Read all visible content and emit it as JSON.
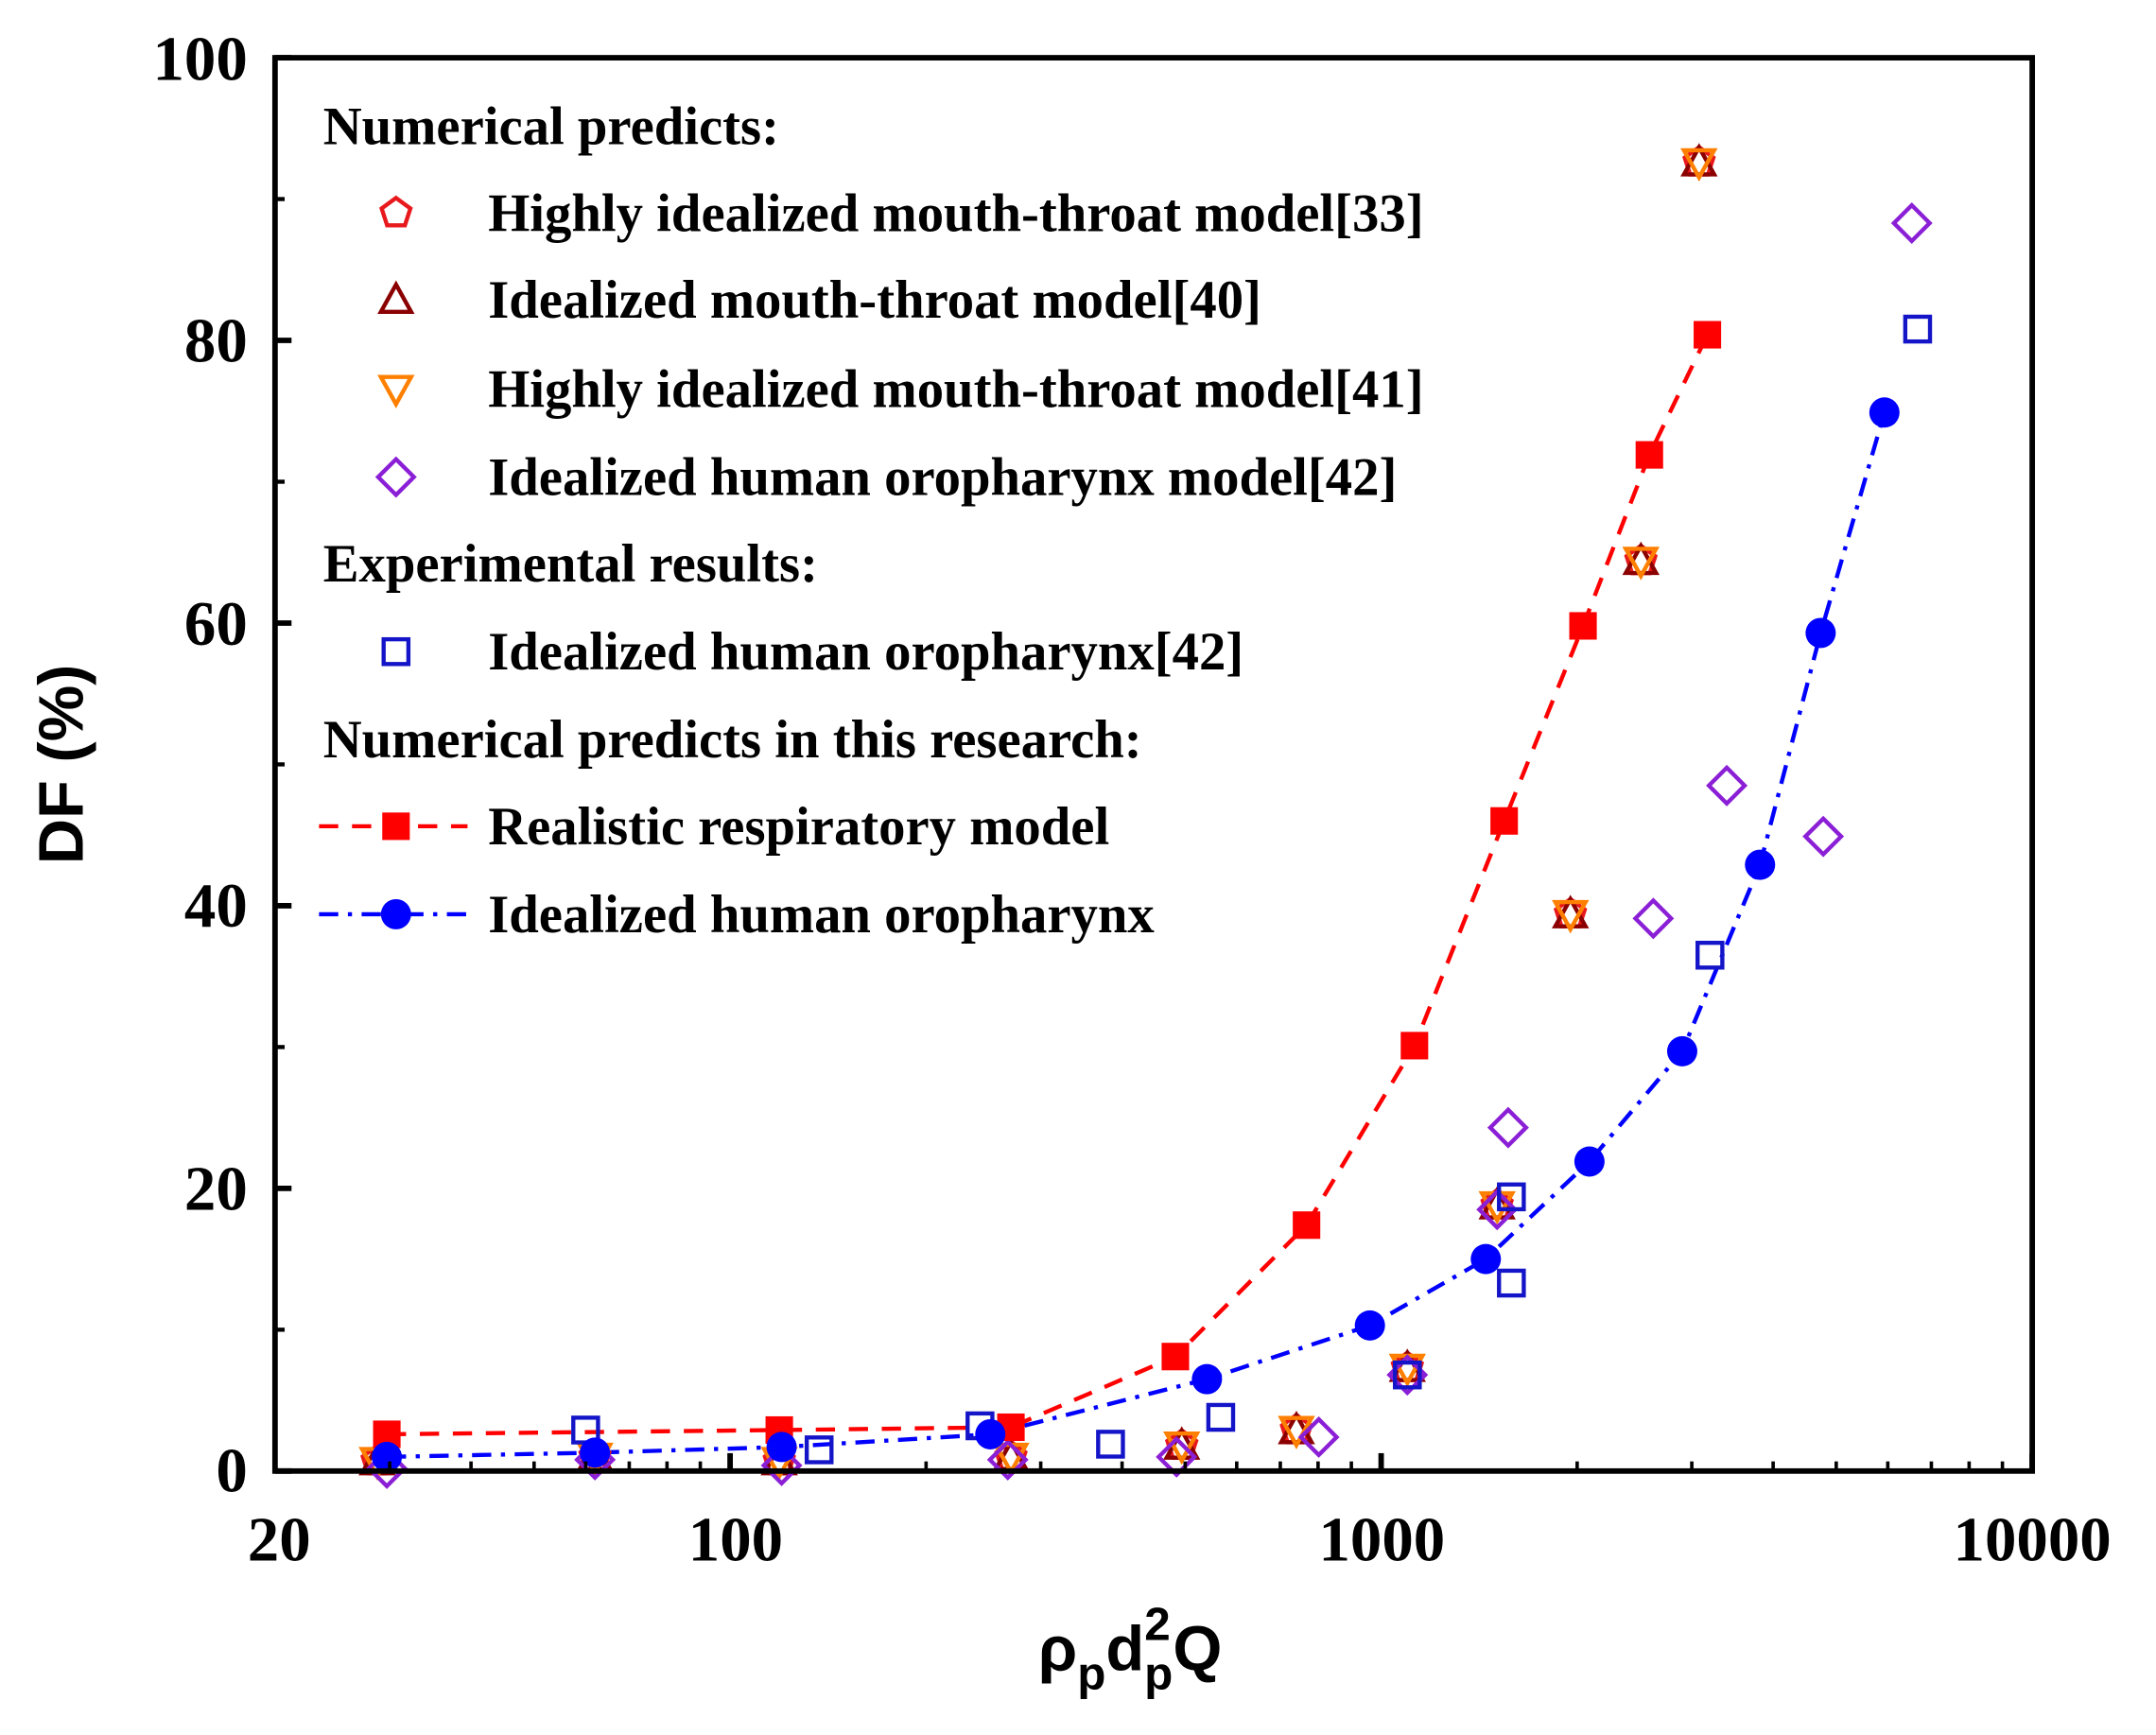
{
  "chart_data": {
    "type": "scatter",
    "xlabel_parts": {
      "rho": "ρ",
      "sub1": "p",
      "d": "d",
      "sup": "2",
      "sub2": "p",
      "q": "Q"
    },
    "ylabel": "DF (%)",
    "xscale": "log",
    "xlim": [
      20,
      10000
    ],
    "ylim": [
      0,
      100
    ],
    "xticks": [
      "20",
      "100",
      "1000",
      "10000"
    ],
    "yticks": [
      "0",
      "20",
      "40",
      "60",
      "80",
      "100"
    ],
    "grid": false,
    "legend_placement": "top-left",
    "legend_headers": {
      "numerical": "Numerical predicts:",
      "experimental": "Experimental results:",
      "this_research": "Numerical predicts in this research:"
    },
    "series": [
      {
        "name": "Highly idealized mouth-throat model[33]",
        "marker": "pentagon-open",
        "color": "#e8191c",
        "x": [
          28.7,
          62,
          119,
          270,
          494,
          741,
          1097,
          1507,
          1953,
          2506,
          3078
        ],
        "y": [
          0.7,
          1.0,
          0.7,
          1.0,
          1.8,
          2.9,
          7.3,
          18.8,
          39.4,
          64.4,
          92.6
        ]
      },
      {
        "name": "Idealized mouth-throat model[40]",
        "marker": "triangle-up-open",
        "color": "#8b0000",
        "x": [
          28.7,
          62,
          119,
          270,
          494,
          741,
          1097,
          1507,
          1953,
          2506,
          3078
        ],
        "y": [
          0.7,
          1.0,
          0.7,
          1.0,
          1.8,
          2.9,
          7.3,
          18.8,
          39.4,
          64.4,
          92.6
        ]
      },
      {
        "name": "Highly idealized mouth-throat model[41]",
        "marker": "triangle-down-open",
        "color": "#ff8000",
        "x": [
          28.7,
          62,
          119,
          270,
          494,
          741,
          1097,
          1507,
          1953,
          2506,
          3078
        ],
        "y": [
          0.7,
          1.0,
          0.7,
          1.0,
          1.8,
          2.9,
          7.3,
          18.8,
          39.4,
          64.4,
          92.6
        ]
      },
      {
        "name": "Idealized human oropharynx model[42]",
        "marker": "diamond-open",
        "color": "#8b1fd6",
        "x": [
          29.7,
          62,
          120,
          267,
          485,
          802,
          1097,
          1507,
          1567,
          2618,
          3395,
          4776,
          6531
        ],
        "y": [
          0.2,
          0.8,
          0.4,
          0.8,
          1.0,
          2.4,
          6.8,
          18.5,
          24.3,
          39.1,
          48.5,
          44.9,
          88.3
        ]
      },
      {
        "name": "Idealized human oropharynx[42]",
        "marker": "square-open",
        "color": "#1414c8",
        "x": [
          60,
          137,
          242,
          384,
          567,
          1097,
          1585,
          1585,
          3199,
          6668
        ],
        "y": [
          2.9,
          1.5,
          3.2,
          1.9,
          3.8,
          6.8,
          19.4,
          13.3,
          36.5,
          80.8
        ]
      },
      {
        "name": "Realistic respiratory model",
        "marker": "square-filled",
        "line": "dashed",
        "color": "#ff0000",
        "x": [
          29.7,
          119,
          270,
          483,
          768,
          1125,
          1545,
          2042,
          2582,
          3170
        ],
        "y": [
          2.6,
          2.9,
          3.1,
          8.1,
          17.4,
          30.1,
          46.0,
          59.8,
          71.9,
          80.4
        ]
      },
      {
        "name": "Idealized human oropharynx",
        "marker": "circle-filled",
        "line": "dash-dot",
        "color": "#0000ff",
        "x": [
          29.7,
          62,
          120,
          251,
          540,
          961,
          1448,
          2089,
          2900,
          3819,
          4732,
          5929
        ],
        "y": [
          1.0,
          1.3,
          1.7,
          2.6,
          6.5,
          10.3,
          15.0,
          21.9,
          29.7,
          42.9,
          59.3,
          74.9
        ]
      }
    ]
  }
}
